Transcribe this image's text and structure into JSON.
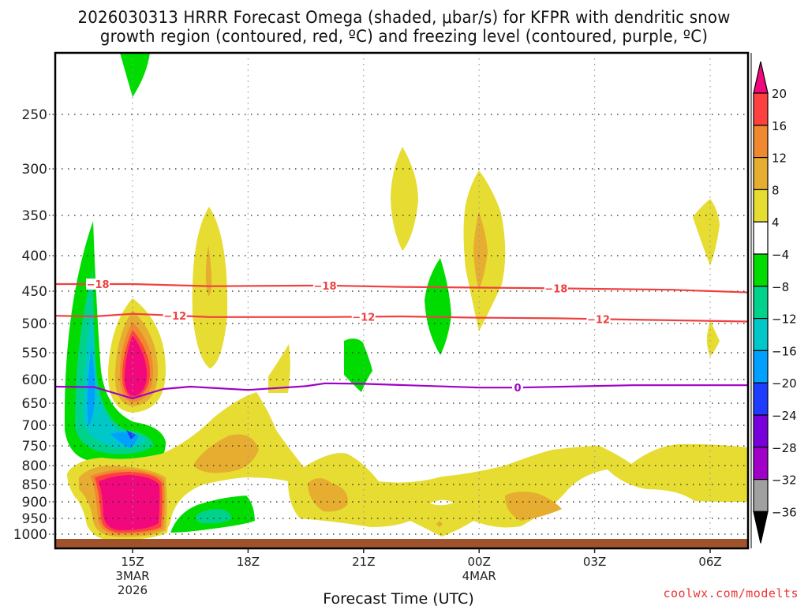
{
  "chart_data": {
    "type": "heatmap",
    "title": "2026030313 HRRR Forecast Omega (shaded, μbar/s) for KFPR with dendritic snow",
    "subtitle": "growth region (contoured, red, ºC) and freezing level (contoured, purple, ºC)",
    "xlabel": "Forecast Time (UTC)",
    "ylabel": "",
    "credit": "coolwx.com/modelts",
    "x_ticks": [
      {
        "label": "15Z",
        "sub1": "3MAR",
        "sub2": "2026",
        "hour": 15
      },
      {
        "label": "18Z",
        "sub1": "",
        "sub2": "",
        "hour": 18
      },
      {
        "label": "21Z",
        "sub1": "",
        "sub2": "",
        "hour": 21
      },
      {
        "label": "00Z",
        "sub1": "4MAR",
        "sub2": "",
        "hour": 24
      },
      {
        "label": "03Z",
        "sub1": "",
        "sub2": "",
        "hour": 27
      },
      {
        "label": "06Z",
        "sub1": "",
        "sub2": "",
        "hour": 30
      }
    ],
    "x_range_hours": [
      13,
      31
    ],
    "y_ticks": [
      250,
      300,
      350,
      400,
      450,
      500,
      550,
      600,
      650,
      700,
      750,
      800,
      850,
      900,
      950,
      1000
    ],
    "y_range_hPa": [
      1030,
      200
    ],
    "grid": true,
    "colorbar": {
      "placement": "right",
      "levels": [
        20,
        16,
        12,
        8,
        4,
        -4,
        -8,
        -12,
        -16,
        -20,
        -24,
        -28,
        -32,
        -36
      ],
      "colors": [
        "#ff4040",
        "#f08830",
        "#e6ad30",
        "#e6dc32",
        "#ffffff",
        "#00dc00",
        "#00d28c",
        "#00c8c8",
        "#00a0ff",
        "#1e3cff",
        "#7800dc",
        "#a000c8",
        "#a0a0a0"
      ],
      "over_color": "#f0087c",
      "under_color": "#000000"
    },
    "contours": [
      {
        "name": "dendritic-top",
        "value": -18,
        "color": "#f04040",
        "label": "−18",
        "points": [
          [
            13,
            440
          ],
          [
            15,
            440
          ],
          [
            17,
            443
          ],
          [
            20,
            442
          ],
          [
            22,
            444
          ],
          [
            24,
            445
          ],
          [
            26,
            446
          ],
          [
            29,
            448
          ],
          [
            31,
            452
          ]
        ],
        "label_hours": [
          14.1,
          20.0,
          26.0
        ]
      },
      {
        "name": "dendritic-bottom",
        "value": -12,
        "color": "#f04040",
        "label": "−12",
        "points": [
          [
            13,
            488
          ],
          [
            14,
            489
          ],
          [
            15,
            485
          ],
          [
            17,
            490
          ],
          [
            20,
            490
          ],
          [
            22,
            489
          ],
          [
            24,
            491
          ],
          [
            26,
            492
          ],
          [
            28,
            494
          ],
          [
            31,
            497
          ]
        ],
        "label_hours": [
          16.1,
          21.0,
          27.1
        ]
      },
      {
        "name": "freezing-level",
        "value": 0,
        "color": "#a000c8",
        "label": "0",
        "points": [
          [
            13,
            615
          ],
          [
            14,
            616
          ],
          [
            15,
            640
          ],
          [
            15.8,
            620
          ],
          [
            16.5,
            615
          ],
          [
            18,
            622
          ],
          [
            19.5,
            614
          ],
          [
            20,
            608
          ],
          [
            21,
            609
          ],
          [
            24,
            617
          ],
          [
            25,
            617
          ],
          [
            28,
            612
          ],
          [
            31,
            612
          ]
        ],
        "label_hours": [
          25.0
        ]
      }
    ],
    "shaded_regions": [
      {
        "level": "-4..-8",
        "desc": "upper-left green tongue",
        "center": [
          15.0,
          230
        ]
      },
      {
        "level": "-4..-24",
        "desc": "large ascent plume",
        "center": [
          14.0,
          600
        ],
        "min_value_band": "-20..-24"
      },
      {
        "level": "4..20+",
        "desc": "mid-level descent core",
        "center": [
          15.0,
          570
        ],
        "max_value_band": ">20"
      },
      {
        "level": "4..20+",
        "desc": "low-level descent core",
        "center": [
          15.0,
          900
        ],
        "max_value_band": ">20"
      },
      {
        "level": "-4..-12",
        "desc": "low-level ascent",
        "center": [
          17.6,
          935
        ]
      },
      {
        "level": "4..12",
        "desc": "low-level descent band",
        "center": [
          22.0,
          850
        ]
      },
      {
        "level": "4..8",
        "desc": "upper descent",
        "center": [
          22.3,
          330
        ]
      },
      {
        "level": "4..12",
        "desc": "upper descent",
        "center": [
          23.9,
          390
        ]
      },
      {
        "level": "4..12",
        "desc": "upper descent",
        "center": [
          17.0,
          430
        ]
      },
      {
        "level": "-4..-8",
        "desc": "small ascent",
        "center": [
          20.8,
          580
        ]
      },
      {
        "level": "-4..-8",
        "desc": "small ascent",
        "center": [
          23.0,
          480
        ]
      },
      {
        "level": "4..8",
        "desc": "small descent",
        "center": [
          19.2,
          590
        ]
      },
      {
        "level": "4..8",
        "desc": "small descent",
        "center": [
          30.0,
          370
        ]
      },
      {
        "level": "4..8",
        "desc": "small descent",
        "center": [
          30.0,
          540
        ]
      }
    ],
    "terrain_color": "#a0522d"
  }
}
